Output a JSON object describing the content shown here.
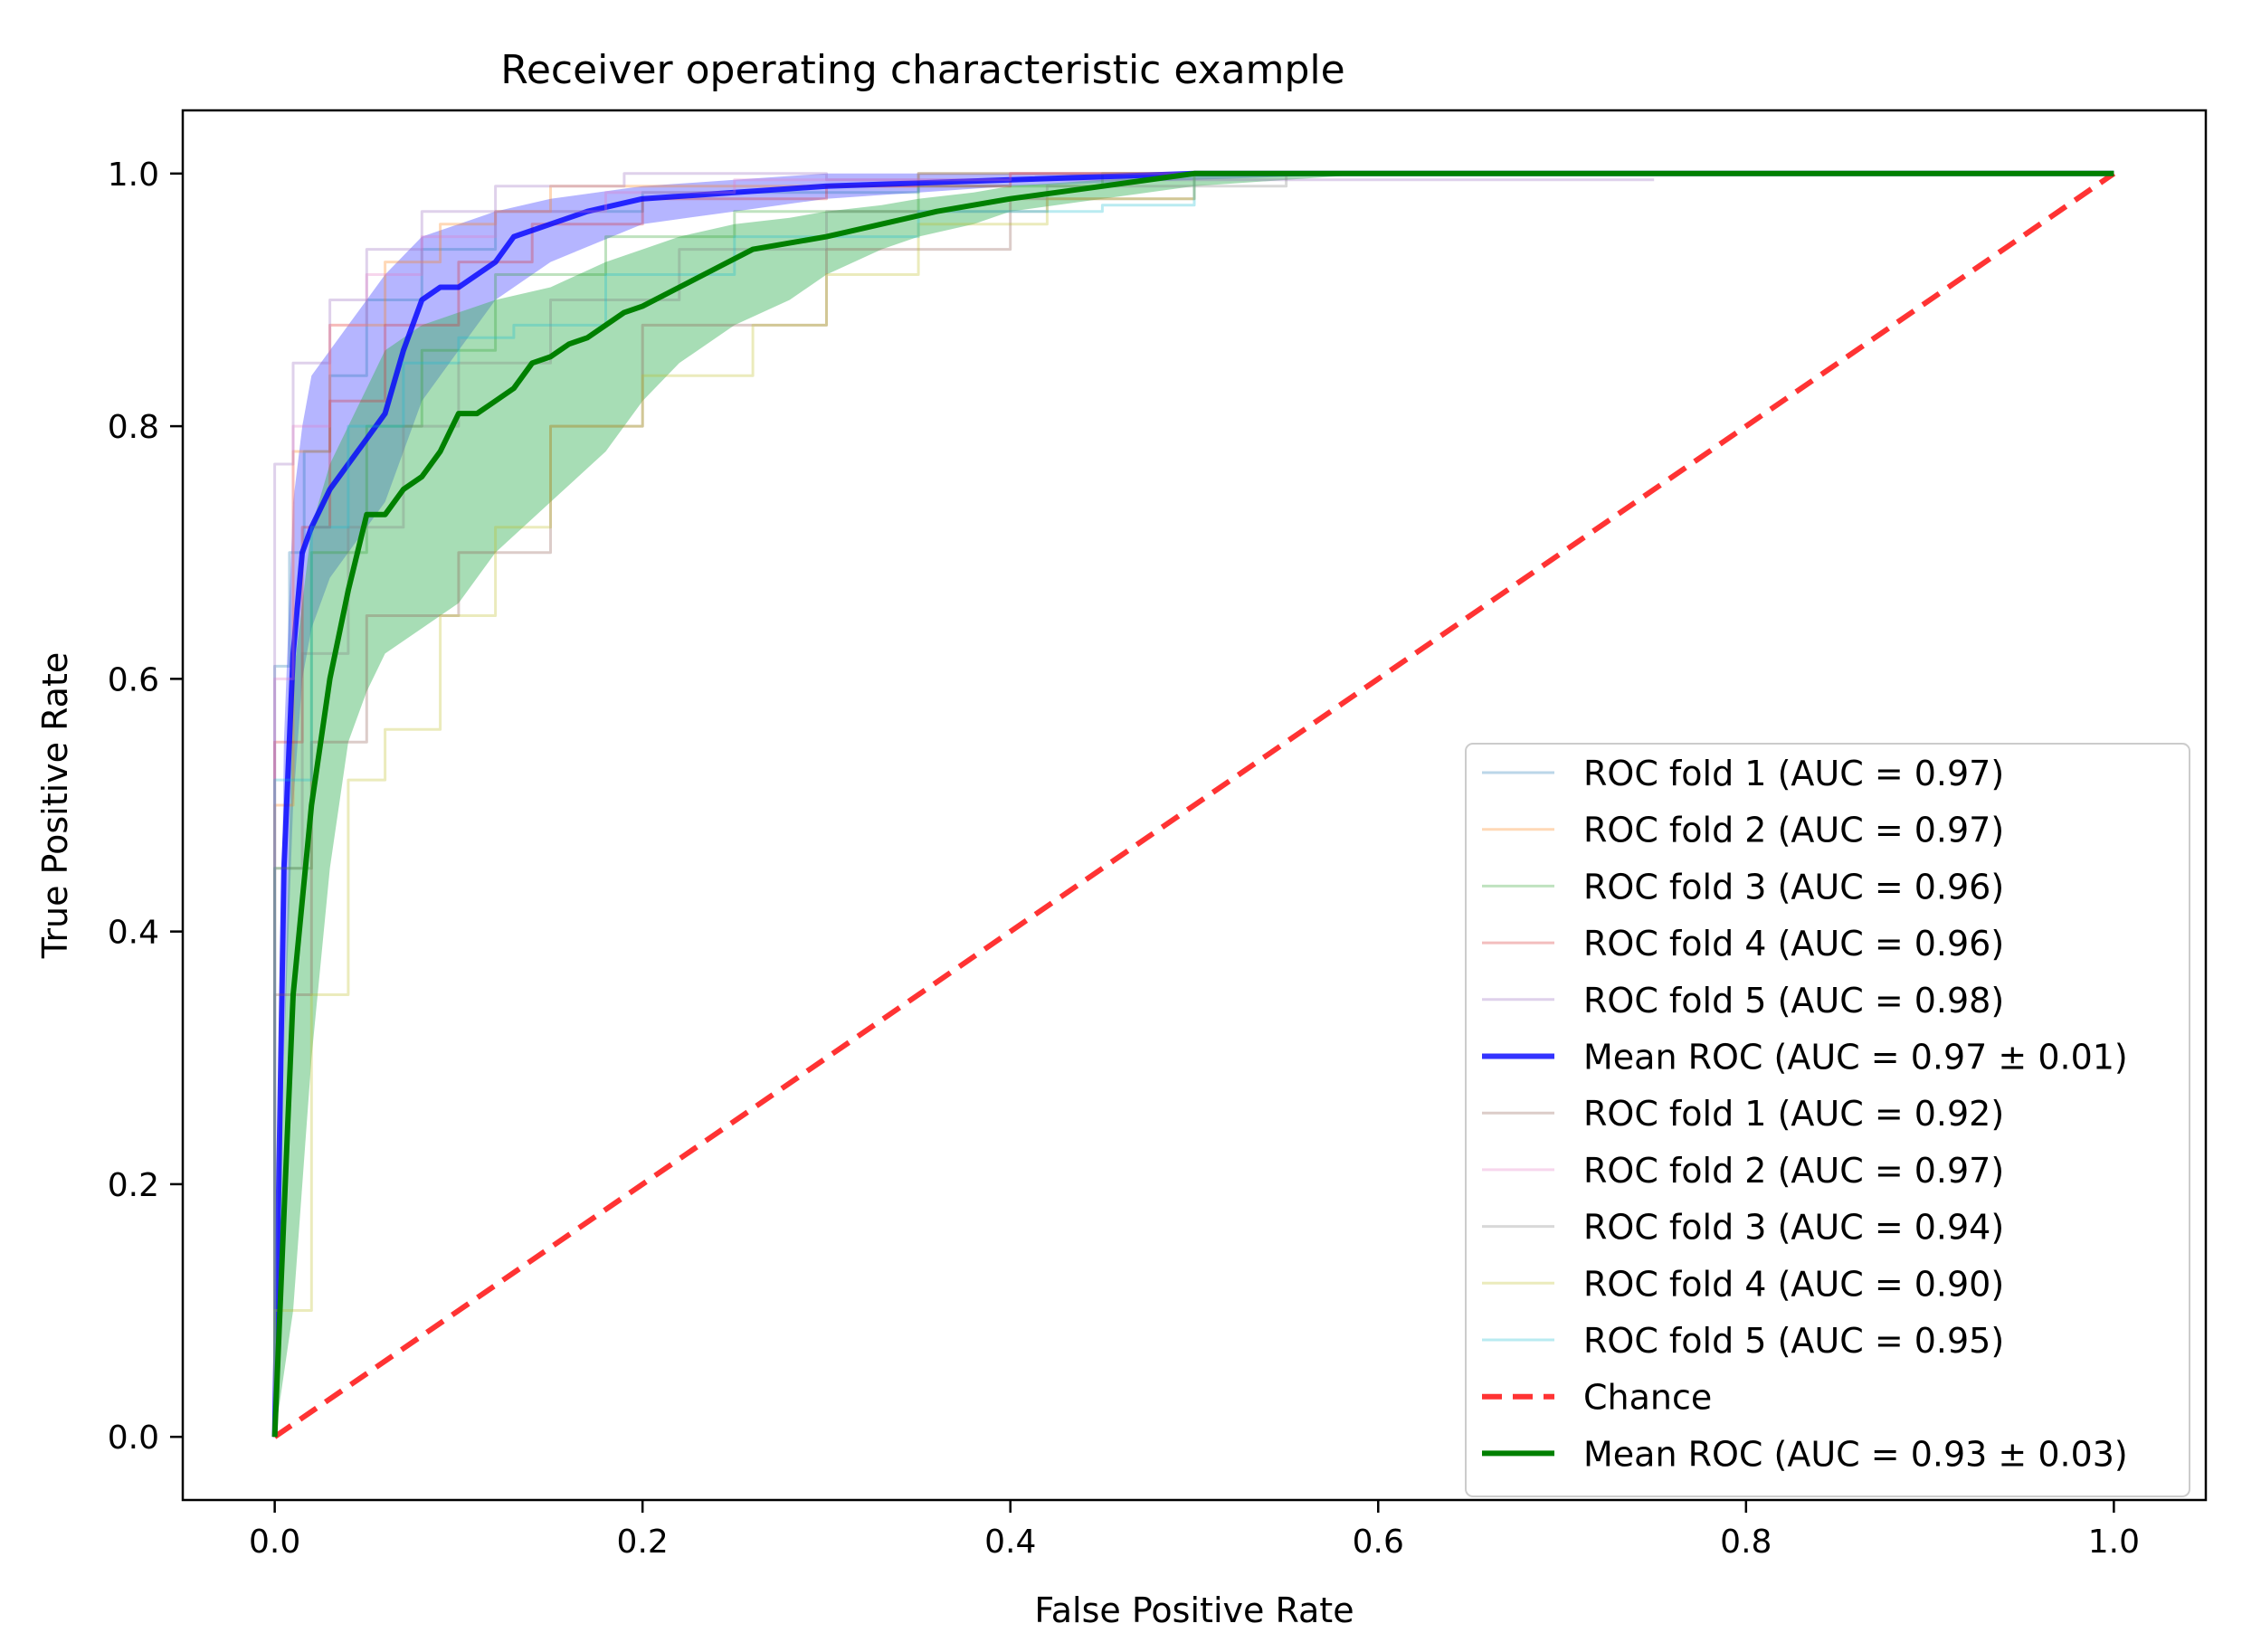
{
  "chart_data": {
    "type": "line",
    "title": "Receiver operating characteristic example",
    "xlabel": "False Positive Rate",
    "ylabel": "True Positive Rate",
    "xlim": [
      -0.05,
      1.05
    ],
    "ylim": [
      -0.05,
      1.05
    ],
    "grid": false,
    "legend_position": "lower-right",
    "xticks": [
      {
        "value": 0.0,
        "label": "0.0"
      },
      {
        "value": 0.2,
        "label": "0.2"
      },
      {
        "value": 0.4,
        "label": "0.4"
      },
      {
        "value": 0.6,
        "label": "0.6"
      },
      {
        "value": 0.8,
        "label": "0.8"
      },
      {
        "value": 1.0,
        "label": "1.0"
      }
    ],
    "yticks": [
      {
        "value": 0.0,
        "label": "0.0"
      },
      {
        "value": 0.2,
        "label": "0.2"
      },
      {
        "value": 0.4,
        "label": "0.4"
      },
      {
        "value": 0.6,
        "label": "0.6"
      },
      {
        "value": 0.8,
        "label": "0.8"
      },
      {
        "value": 1.0,
        "label": "1.0"
      }
    ],
    "bands": [
      {
        "name": "mean-roc-1-band",
        "color": "#5a5aff",
        "x": [
          0,
          0.005,
          0.01,
          0.015,
          0.02,
          0.03,
          0.04,
          0.05,
          0.06,
          0.08,
          0.1,
          0.12,
          0.15,
          0.2,
          0.25,
          0.3,
          0.35,
          0.4,
          0.5,
          0.6,
          0.75
        ],
        "upper": [
          0,
          0.55,
          0.74,
          0.8,
          0.84,
          0.86,
          0.88,
          0.9,
          0.92,
          0.95,
          0.96,
          0.97,
          0.98,
          0.99,
          0.995,
          1.0,
          1.0,
          1.0,
          1.0,
          1.0,
          1.0
        ],
        "lower": [
          0,
          0.3,
          0.5,
          0.6,
          0.64,
          0.68,
          0.7,
          0.72,
          0.74,
          0.82,
          0.86,
          0.9,
          0.93,
          0.96,
          0.97,
          0.98,
          0.985,
          0.99,
          0.995,
          1.0,
          1.0
        ]
      },
      {
        "name": "mean-roc-2-band",
        "color": "#3cb45a",
        "x": [
          0,
          0.01,
          0.02,
          0.03,
          0.04,
          0.05,
          0.06,
          0.08,
          0.1,
          0.12,
          0.15,
          0.18,
          0.2,
          0.22,
          0.25,
          0.28,
          0.3,
          0.33,
          0.35,
          0.38,
          0.4,
          0.45,
          0.5,
          0.6,
          0.75,
          1.0
        ],
        "upper": [
          0,
          0.6,
          0.72,
          0.77,
          0.8,
          0.83,
          0.86,
          0.88,
          0.89,
          0.9,
          0.91,
          0.93,
          0.94,
          0.95,
          0.96,
          0.965,
          0.97,
          0.975,
          0.98,
          0.985,
          0.99,
          0.995,
          1.0,
          1.0,
          1.0,
          1.0
        ],
        "lower": [
          0,
          0.1,
          0.3,
          0.45,
          0.55,
          0.59,
          0.62,
          0.64,
          0.66,
          0.7,
          0.74,
          0.78,
          0.82,
          0.85,
          0.88,
          0.9,
          0.92,
          0.94,
          0.95,
          0.96,
          0.97,
          0.98,
          0.99,
          1.0,
          1.0,
          1.0
        ]
      }
    ],
    "series": [
      {
        "name": "ROC fold 1 (AUC = 0.97)",
        "label": "ROC fold 1 (AUC = 0.97)",
        "color": "#1f77b4",
        "width": 3,
        "opacity": 0.3,
        "dash": "solid",
        "x": [
          0,
          0,
          0.008,
          0.008,
          0.016,
          0.016,
          0.03,
          0.03,
          0.05,
          0.05,
          0.08,
          0.08,
          0.12,
          0.12,
          0.2,
          0.2,
          0.35,
          0.35,
          0.75
        ],
        "y": [
          0,
          0.61,
          0.61,
          0.7,
          0.7,
          0.78,
          0.78,
          0.84,
          0.84,
          0.9,
          0.9,
          0.94,
          0.94,
          0.97,
          0.97,
          0.985,
          0.985,
          1.0,
          1.0
        ]
      },
      {
        "name": "ROC fold 2 (AUC = 0.97)",
        "label": "ROC fold 2 (AUC = 0.97)",
        "color": "#ff7f0e",
        "width": 3,
        "opacity": 0.3,
        "dash": "solid",
        "x": [
          0,
          0,
          0.01,
          0.01,
          0.03,
          0.03,
          0.06,
          0.06,
          0.09,
          0.09,
          0.12,
          0.12,
          0.15,
          0.15,
          0.35,
          0.35,
          0.76
        ],
        "y": [
          0,
          0.5,
          0.5,
          0.78,
          0.78,
          0.88,
          0.88,
          0.93,
          0.93,
          0.96,
          0.96,
          0.97,
          0.97,
          0.99,
          0.99,
          1.0,
          1.0
        ]
      },
      {
        "name": "ROC fold 3 (AUC = 0.96)",
        "label": "ROC fold 3 (AUC = 0.96)",
        "color": "#2ca02c",
        "width": 3,
        "opacity": 0.3,
        "dash": "solid",
        "x": [
          0,
          0,
          0.02,
          0.02,
          0.05,
          0.05,
          0.08,
          0.08,
          0.12,
          0.12,
          0.18,
          0.18,
          0.25,
          0.25,
          0.35,
          0.35,
          0.45,
          0.45,
          0.75
        ],
        "y": [
          0,
          0.45,
          0.45,
          0.7,
          0.7,
          0.8,
          0.8,
          0.86,
          0.86,
          0.92,
          0.92,
          0.95,
          0.95,
          0.97,
          0.97,
          0.99,
          0.99,
          1.0,
          1.0
        ]
      },
      {
        "name": "ROC fold 4 (AUC = 0.96)",
        "label": "ROC fold 4 (AUC = 0.96)",
        "color": "#d62728",
        "width": 3,
        "opacity": 0.3,
        "dash": "solid",
        "x": [
          0,
          0,
          0.015,
          0.015,
          0.03,
          0.03,
          0.06,
          0.06,
          0.1,
          0.1,
          0.14,
          0.14,
          0.2,
          0.2,
          0.3,
          0.3,
          0.4,
          0.4,
          0.75
        ],
        "y": [
          0,
          0.55,
          0.55,
          0.72,
          0.72,
          0.82,
          0.82,
          0.88,
          0.88,
          0.93,
          0.93,
          0.96,
          0.96,
          0.98,
          0.98,
          0.99,
          0.99,
          1.0,
          1.0
        ]
      },
      {
        "name": "ROC fold 5 (AUC = 0.98)",
        "label": "ROC fold 5 (AUC = 0.98)",
        "color": "#9467bd",
        "width": 3,
        "opacity": 0.3,
        "dash": "solid",
        "x": [
          0,
          0,
          0.01,
          0.01,
          0.03,
          0.03,
          0.05,
          0.05,
          0.08,
          0.08,
          0.12,
          0.12,
          0.19,
          0.19,
          0.3,
          0.3,
          0.75
        ],
        "y": [
          0,
          0.77,
          0.77,
          0.85,
          0.85,
          0.9,
          0.9,
          0.94,
          0.94,
          0.97,
          0.97,
          0.99,
          0.99,
          1.0,
          1.0,
          0.995,
          0.995
        ]
      },
      {
        "name": "Mean ROC (AUC = 0.97 ± 0.01)",
        "label": "Mean ROC (AUC = 0.97 ± 0.01)",
        "color": "#0000ff",
        "width": 6,
        "opacity": 0.8,
        "dash": "solid",
        "x": [
          0,
          0.005,
          0.01,
          0.015,
          0.02,
          0.03,
          0.04,
          0.05,
          0.06,
          0.07,
          0.08,
          0.09,
          0.1,
          0.12,
          0.13,
          0.15,
          0.17,
          0.2,
          0.25,
          0.3,
          0.4,
          0.5,
          0.6,
          0.8,
          1.0
        ],
        "y": [
          0,
          0.45,
          0.62,
          0.7,
          0.72,
          0.75,
          0.77,
          0.79,
          0.81,
          0.86,
          0.9,
          0.91,
          0.91,
          0.93,
          0.95,
          0.96,
          0.97,
          0.98,
          0.985,
          0.99,
          0.995,
          1.0,
          1.0,
          1.0,
          1.0
        ]
      },
      {
        "name": "ROC fold 1 (AUC = 0.92)",
        "label": "ROC fold 1 (AUC = 0.92)",
        "color": "#8c564b",
        "width": 3,
        "opacity": 0.3,
        "dash": "solid",
        "x": [
          0,
          0,
          0.02,
          0.02,
          0.05,
          0.05,
          0.1,
          0.1,
          0.15,
          0.15,
          0.2,
          0.2,
          0.3,
          0.3,
          0.4,
          0.4,
          0.5,
          0.5,
          1.0
        ],
        "y": [
          0,
          0.35,
          0.35,
          0.55,
          0.55,
          0.65,
          0.65,
          0.7,
          0.7,
          0.8,
          0.8,
          0.88,
          0.88,
          0.94,
          0.94,
          0.98,
          0.98,
          1.0,
          1.0
        ]
      },
      {
        "name": "ROC fold 2 (AUC = 0.97)",
        "label": "ROC fold 2 (AUC = 0.97)",
        "color": "#e377c2",
        "width": 3,
        "opacity": 0.3,
        "dash": "solid",
        "x": [
          0,
          0,
          0.01,
          0.01,
          0.03,
          0.03,
          0.05,
          0.05,
          0.08,
          0.08,
          0.12,
          0.12,
          0.18,
          0.18,
          0.25,
          0.25,
          0.4,
          0.4,
          0.75
        ],
        "y": [
          0,
          0.6,
          0.6,
          0.8,
          0.8,
          0.88,
          0.88,
          0.92,
          0.92,
          0.95,
          0.95,
          0.97,
          0.97,
          0.985,
          0.985,
          0.995,
          0.995,
          1.0,
          1.0
        ]
      },
      {
        "name": "ROC fold 3 (AUC = 0.94)",
        "label": "ROC fold 3 (AUC = 0.94)",
        "color": "#7f7f7f",
        "width": 3,
        "opacity": 0.3,
        "dash": "solid",
        "x": [
          0,
          0,
          0.015,
          0.015,
          0.04,
          0.04,
          0.07,
          0.07,
          0.1,
          0.1,
          0.15,
          0.15,
          0.22,
          0.22,
          0.3,
          0.3,
          0.42,
          0.42,
          0.55,
          0.55,
          0.75
        ],
        "y": [
          0,
          0.45,
          0.45,
          0.62,
          0.62,
          0.72,
          0.72,
          0.8,
          0.8,
          0.85,
          0.85,
          0.9,
          0.9,
          0.94,
          0.94,
          0.97,
          0.97,
          0.99,
          0.99,
          1.0,
          1.0
        ]
      },
      {
        "name": "ROC fold 4 (AUC = 0.90)",
        "label": "ROC fold 4 (AUC = 0.90)",
        "color": "#bcbd22",
        "width": 3,
        "opacity": 0.3,
        "dash": "solid",
        "x": [
          0,
          0,
          0.02,
          0.02,
          0.04,
          0.04,
          0.06,
          0.06,
          0.09,
          0.09,
          0.12,
          0.12,
          0.15,
          0.15,
          0.2,
          0.2,
          0.26,
          0.26,
          0.3,
          0.3,
          0.35,
          0.35,
          0.42,
          0.42,
          0.5,
          0.5,
          1.0
        ],
        "y": [
          0,
          0.1,
          0.1,
          0.35,
          0.35,
          0.52,
          0.52,
          0.56,
          0.56,
          0.65,
          0.65,
          0.72,
          0.72,
          0.8,
          0.8,
          0.84,
          0.84,
          0.88,
          0.88,
          0.92,
          0.92,
          0.96,
          0.96,
          0.98,
          0.98,
          1.0,
          1.0
        ]
      },
      {
        "name": "ROC fold 5 (AUC = 0.95)",
        "label": "ROC fold 5 (AUC = 0.95)",
        "color": "#17becf",
        "width": 3,
        "opacity": 0.3,
        "dash": "solid",
        "x": [
          0,
          0,
          0.02,
          0.02,
          0.04,
          0.04,
          0.07,
          0.07,
          0.1,
          0.1,
          0.13,
          0.13,
          0.18,
          0.18,
          0.25,
          0.25,
          0.35,
          0.35,
          0.45,
          0.45,
          0.5,
          0.5,
          1.0
        ],
        "y": [
          0,
          0.52,
          0.52,
          0.72,
          0.72,
          0.8,
          0.8,
          0.85,
          0.85,
          0.87,
          0.87,
          0.88,
          0.88,
          0.92,
          0.92,
          0.95,
          0.95,
          0.97,
          0.97,
          0.975,
          0.975,
          1.0,
          1.0
        ]
      },
      {
        "name": "Chance",
        "label": "Chance",
        "color": "#ff0000",
        "width": 6,
        "opacity": 0.8,
        "dash": "dashed",
        "x": [
          0,
          1
        ],
        "y": [
          0,
          1
        ]
      },
      {
        "name": "Mean ROC (AUC = 0.93 ± 0.03)",
        "label": "Mean ROC (AUC = 0.93 ± 0.03)",
        "color": "#008000",
        "width": 6,
        "opacity": 1.0,
        "dash": "solid",
        "x": [
          0,
          0.01,
          0.02,
          0.03,
          0.04,
          0.05,
          0.06,
          0.07,
          0.08,
          0.09,
          0.1,
          0.11,
          0.12,
          0.13,
          0.14,
          0.15,
          0.16,
          0.17,
          0.18,
          0.19,
          0.2,
          0.22,
          0.24,
          0.26,
          0.28,
          0.3,
          0.33,
          0.36,
          0.4,
          0.45,
          0.5,
          0.6,
          0.8,
          1.0
        ],
        "y": [
          0,
          0.35,
          0.5,
          0.6,
          0.67,
          0.73,
          0.73,
          0.75,
          0.76,
          0.78,
          0.81,
          0.81,
          0.82,
          0.83,
          0.85,
          0.855,
          0.865,
          0.87,
          0.88,
          0.89,
          0.895,
          0.91,
          0.925,
          0.94,
          0.945,
          0.95,
          0.96,
          0.97,
          0.98,
          0.99,
          1.0,
          1.0,
          1.0,
          1.0
        ]
      }
    ]
  }
}
